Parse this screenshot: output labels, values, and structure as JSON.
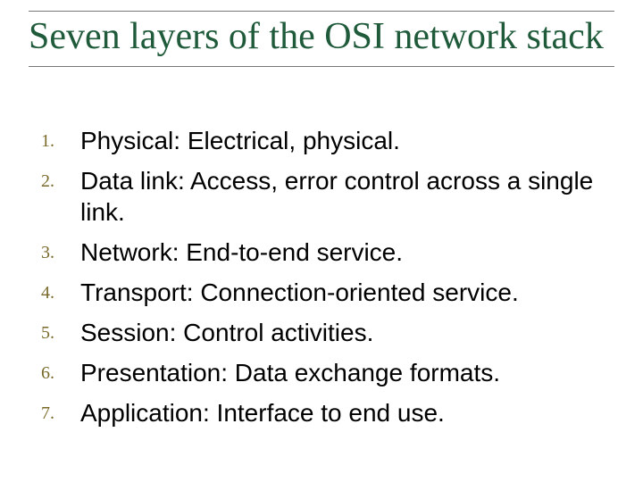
{
  "title": "Seven layers of the OSI network stack",
  "colors": {
    "title_color": "#1f5a3a",
    "number_color": "#7a6a2a",
    "body_color": "#000000",
    "rule_color": "#777777",
    "background": "#ffffff"
  },
  "typography": {
    "title_font": "Times New Roman",
    "title_size_pt": 32,
    "number_font": "Times New Roman",
    "number_size_pt": 15,
    "body_font": "Arial",
    "body_size_pt": 21
  },
  "items": [
    {
      "n": "1.",
      "text": "Physical: Electrical, physical."
    },
    {
      "n": "2.",
      "text": "Data link: Access, error control across a single link."
    },
    {
      "n": "3.",
      "text": "Network: End-to-end service."
    },
    {
      "n": "4.",
      "text": "Transport: Connection-oriented service."
    },
    {
      "n": "5.",
      "text": "Session: Control activities."
    },
    {
      "n": "6.",
      "text": "Presentation: Data exchange formats."
    },
    {
      "n": "7.",
      "text": "Application: Interface to end use."
    }
  ]
}
